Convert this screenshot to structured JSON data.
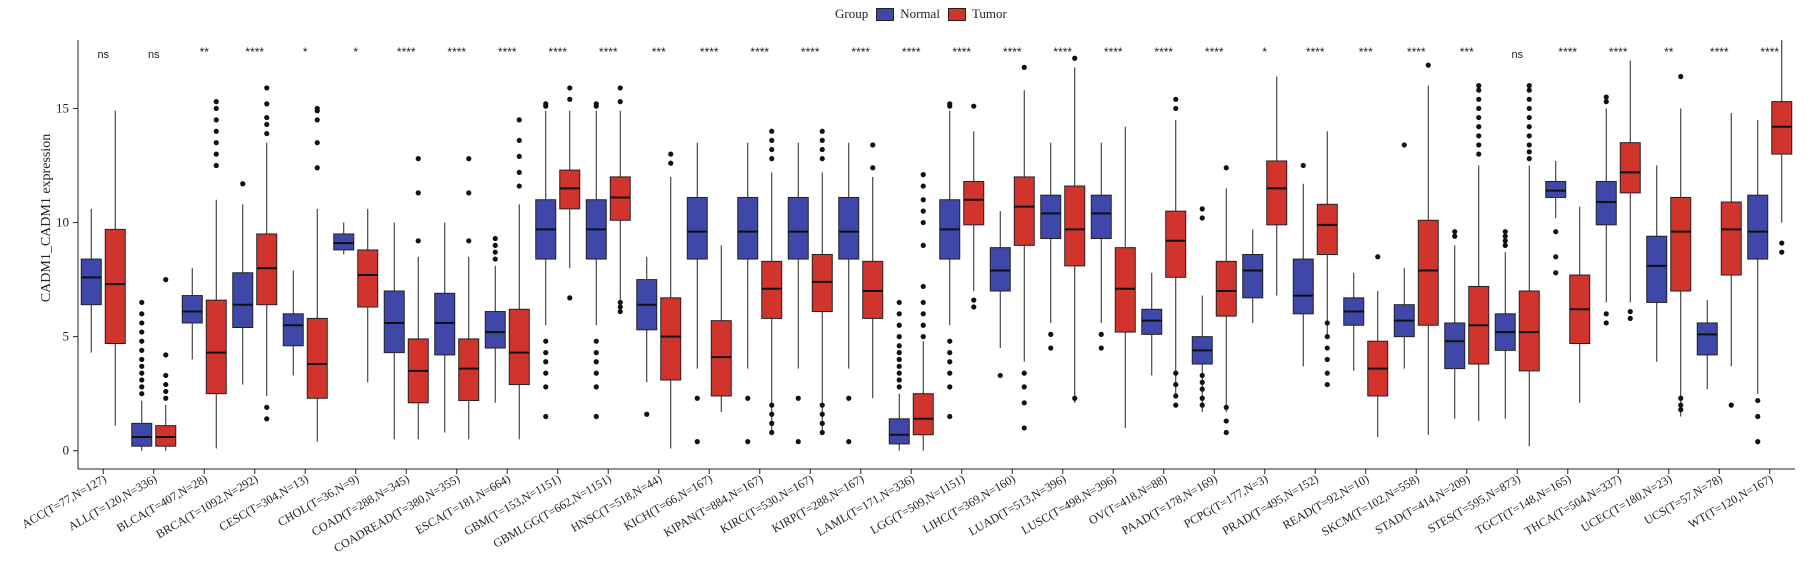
{
  "chart_data": {
    "type": "box",
    "title": "",
    "xlabel": "",
    "ylabel": "CADM1_CADM1 expression",
    "ylim": [
      -0.8,
      18
    ],
    "yticks": [
      0,
      5,
      10,
      15
    ],
    "grid": false,
    "legend": {
      "title": "Group",
      "placement": "top-center",
      "entries": [
        {
          "name": "Normal",
          "color": "#3f48a8"
        },
        {
          "name": "Tumor",
          "color": "#d0342c"
        }
      ]
    },
    "categories": [
      "ACC(T=77,N=127)",
      "ALL(T=120,N=336)",
      "BLCA(T=407,N=28)",
      "BRCA(T=1092,N=292)",
      "CESC(T=304,N=13)",
      "CHOL(T=36,N=9)",
      "COAD(T=288,N=345)",
      "COADREAD(T=380,N=355)",
      "ESCA(T=181,N=664)",
      "GBM(T=153,N=1151)",
      "GBMLGG(T=662,N=1151)",
      "HNSC(T=518,N=44)",
      "KICH(T=66,N=167)",
      "KIPAN(T=884,N=167)",
      "KIRC(T=530,N=167)",
      "KIRP(T=288,N=167)",
      "LAML(T=171,N=336)",
      "LGG(T=509,N=1151)",
      "LIHC(T=369,N=160)",
      "LUAD(T=513,N=396)",
      "LUSC(T=498,N=396)",
      "OV(T=418,N=88)",
      "PAAD(T=178,N=169)",
      "PCPG(T=177,N=3)",
      "PRAD(T=495,N=152)",
      "READ(T=92,N=10)",
      "SKCM(T=102,N=558)",
      "STAD(T=414,N=209)",
      "STES(T=595,N=873)",
      "TGCT(T=148,N=165)",
      "THCA(T=504,N=337)",
      "UCEC(T=180,N=23)",
      "UCS(T=57,N=78)",
      "WT(T=120,N=167)"
    ],
    "significance": [
      "ns",
      "ns",
      "**",
      "****",
      "*",
      "*",
      "****",
      "****",
      "****",
      "****",
      "****",
      "***",
      "****",
      "****",
      "****",
      "****",
      "****",
      "****",
      "****",
      "****",
      "****",
      "****",
      "****",
      "*",
      "****",
      "***",
      "****",
      "***",
      "ns",
      "****",
      "****",
      "**",
      "****",
      "****"
    ],
    "series": [
      {
        "name": "Normal",
        "color": "#3f48a8",
        "boxes": [
          {
            "min": 4.3,
            "q1": 6.4,
            "median": 7.6,
            "q3": 8.4,
            "max": 10.6,
            "outliers": []
          },
          {
            "min": 0.0,
            "q1": 0.2,
            "median": 0.6,
            "q3": 1.2,
            "max": 2.2,
            "outliers": [
              2.5,
              2.8,
              3.1,
              3.4,
              3.7,
              4.0,
              4.4,
              4.8,
              5.2,
              5.6,
              6.0,
              6.5
            ]
          },
          {
            "min": 4.0,
            "q1": 5.6,
            "median": 6.1,
            "q3": 6.8,
            "max": 8.0,
            "outliers": []
          },
          {
            "min": 2.9,
            "q1": 5.4,
            "median": 6.4,
            "q3": 7.8,
            "max": 10.8,
            "outliers": [
              11.7
            ]
          },
          {
            "min": 3.3,
            "q1": 4.6,
            "median": 5.5,
            "q3": 6.0,
            "max": 7.9,
            "outliers": []
          },
          {
            "min": 8.6,
            "q1": 8.8,
            "median": 9.1,
            "q3": 9.5,
            "max": 10.0,
            "outliers": []
          },
          {
            "min": 0.5,
            "q1": 4.3,
            "median": 5.6,
            "q3": 7.0,
            "max": 10.0,
            "outliers": []
          },
          {
            "min": 0.8,
            "q1": 4.2,
            "median": 5.6,
            "q3": 6.9,
            "max": 10.0,
            "outliers": []
          },
          {
            "min": 2.1,
            "q1": 4.5,
            "median": 5.2,
            "q3": 6.1,
            "max": 8.1,
            "outliers": [
              8.4,
              8.7,
              9.0,
              9.3
            ]
          },
          {
            "min": 5.5,
            "q1": 8.4,
            "median": 9.7,
            "q3": 11.0,
            "max": 14.9,
            "outliers": [
              1.5,
              2.8,
              3.4,
              3.9,
              4.3,
              4.8,
              15.1,
              15.2
            ]
          },
          {
            "min": 5.5,
            "q1": 8.4,
            "median": 9.7,
            "q3": 11.0,
            "max": 14.9,
            "outliers": [
              1.5,
              2.8,
              3.4,
              3.9,
              4.3,
              4.8,
              15.1,
              15.2
            ]
          },
          {
            "min": 3.0,
            "q1": 5.3,
            "median": 6.4,
            "q3": 7.5,
            "max": 8.5,
            "outliers": [
              1.6
            ]
          },
          {
            "min": 3.6,
            "q1": 8.4,
            "median": 9.6,
            "q3": 11.1,
            "max": 13.5,
            "outliers": [
              0.4,
              2.3
            ]
          },
          {
            "min": 3.6,
            "q1": 8.4,
            "median": 9.6,
            "q3": 11.1,
            "max": 13.5,
            "outliers": [
              0.4,
              2.3
            ]
          },
          {
            "min": 3.6,
            "q1": 8.4,
            "median": 9.6,
            "q3": 11.1,
            "max": 13.5,
            "outliers": [
              0.4,
              2.3
            ]
          },
          {
            "min": 3.6,
            "q1": 8.4,
            "median": 9.6,
            "q3": 11.1,
            "max": 13.5,
            "outliers": [
              0.4,
              2.3
            ]
          },
          {
            "min": 0.0,
            "q1": 0.3,
            "median": 0.7,
            "q3": 1.4,
            "max": 2.5,
            "outliers": [
              2.8,
              3.1,
              3.4,
              3.7,
              4.0,
              4.3,
              4.6,
              5.0,
              5.5,
              6.0,
              6.5
            ]
          },
          {
            "min": 5.5,
            "q1": 8.4,
            "median": 9.7,
            "q3": 11.0,
            "max": 14.9,
            "outliers": [
              1.5,
              2.8,
              3.4,
              3.9,
              4.3,
              4.8,
              15.1,
              15.2
            ]
          },
          {
            "min": 4.5,
            "q1": 7.0,
            "median": 7.9,
            "q3": 8.9,
            "max": 10.5,
            "outliers": [
              3.3
            ]
          },
          {
            "min": 5.6,
            "q1": 9.3,
            "median": 10.4,
            "q3": 11.2,
            "max": 13.5,
            "outliers": [
              4.5,
              5.1
            ]
          },
          {
            "min": 5.6,
            "q1": 9.3,
            "median": 10.4,
            "q3": 11.2,
            "max": 13.5,
            "outliers": [
              4.5,
              5.1
            ]
          },
          {
            "min": 3.3,
            "q1": 5.1,
            "median": 5.7,
            "q3": 6.2,
            "max": 7.8,
            "outliers": []
          },
          {
            "min": 1.7,
            "q1": 3.8,
            "median": 4.4,
            "q3": 5.0,
            "max": 6.8,
            "outliers": [
              2.0,
              2.3,
              2.7,
              3.0,
              3.3,
              10.2,
              10.6
            ]
          },
          {
            "min": 5.6,
            "q1": 6.7,
            "median": 7.9,
            "q3": 8.6,
            "max": 9.7,
            "outliers": []
          },
          {
            "min": 3.7,
            "q1": 6.0,
            "median": 6.8,
            "q3": 8.4,
            "max": 11.7,
            "outliers": [
              12.5
            ]
          },
          {
            "min": 3.5,
            "q1": 5.5,
            "median": 6.1,
            "q3": 6.7,
            "max": 7.8,
            "outliers": []
          },
          {
            "min": 3.6,
            "q1": 5.0,
            "median": 5.7,
            "q3": 6.4,
            "max": 8.0,
            "outliers": [
              13.4
            ]
          },
          {
            "min": 1.4,
            "q1": 3.6,
            "median": 4.8,
            "q3": 5.6,
            "max": 9.0,
            "outliers": [
              9.4,
              9.6
            ]
          },
          {
            "min": 1.4,
            "q1": 4.4,
            "median": 5.2,
            "q3": 6.0,
            "max": 8.7,
            "outliers": [
              9.0,
              9.2,
              9.4,
              9.6
            ]
          },
          {
            "min": 10.2,
            "q1": 11.1,
            "median": 11.4,
            "q3": 11.8,
            "max": 12.7,
            "outliers": [
              9.6,
              8.5,
              7.8
            ]
          },
          {
            "min": 6.5,
            "q1": 9.9,
            "median": 10.9,
            "q3": 11.8,
            "max": 15.0,
            "outliers": [
              5.6,
              6.0,
              15.3,
              15.5
            ]
          },
          {
            "min": 3.9,
            "q1": 6.5,
            "median": 8.1,
            "q3": 9.4,
            "max": 12.5,
            "outliers": []
          },
          {
            "min": 2.7,
            "q1": 4.2,
            "median": 5.1,
            "q3": 5.6,
            "max": 6.6,
            "outliers": []
          },
          {
            "min": 2.5,
            "q1": 8.4,
            "median": 9.6,
            "q3": 11.2,
            "max": 14.5,
            "outliers": [
              0.4,
              1.5,
              2.2
            ]
          }
        ]
      },
      {
        "name": "Tumor",
        "color": "#d0342c",
        "boxes": [
          {
            "min": 1.1,
            "q1": 4.7,
            "median": 7.3,
            "q3": 9.7,
            "max": 14.9,
            "outliers": []
          },
          {
            "min": 0.0,
            "q1": 0.2,
            "median": 0.6,
            "q3": 1.1,
            "max": 2.0,
            "outliers": [
              2.3,
              2.6,
              2.9,
              3.3,
              4.2,
              7.5
            ]
          },
          {
            "min": 0.1,
            "q1": 2.5,
            "median": 4.3,
            "q3": 6.6,
            "max": 11.0,
            "outliers": [
              12.5,
              13.0,
              13.5,
              14.0,
              14.5,
              15.0,
              15.3
            ]
          },
          {
            "min": 2.4,
            "q1": 6.4,
            "median": 8.0,
            "q3": 9.5,
            "max": 13.5,
            "outliers": [
              1.4,
              1.9,
              13.9,
              14.3,
              14.6,
              15.2,
              15.9
            ]
          },
          {
            "min": 0.4,
            "q1": 2.3,
            "median": 3.8,
            "q3": 5.8,
            "max": 10.6,
            "outliers": [
              12.4,
              13.5,
              14.5,
              14.9,
              15.0
            ]
          },
          {
            "min": 3.0,
            "q1": 6.3,
            "median": 7.7,
            "q3": 8.8,
            "max": 10.6,
            "outliers": []
          },
          {
            "min": 0.5,
            "q1": 2.1,
            "median": 3.5,
            "q3": 4.9,
            "max": 8.5,
            "outliers": [
              9.2,
              11.3,
              12.8
            ]
          },
          {
            "min": 0.5,
            "q1": 2.2,
            "median": 3.6,
            "q3": 4.9,
            "max": 8.5,
            "outliers": [
              9.2,
              11.3,
              12.8
            ]
          },
          {
            "min": 0.5,
            "q1": 2.9,
            "median": 4.3,
            "q3": 6.2,
            "max": 10.8,
            "outliers": [
              11.6,
              12.2,
              12.9,
              13.6,
              14.5
            ]
          },
          {
            "min": 8.0,
            "q1": 10.6,
            "median": 11.5,
            "q3": 12.3,
            "max": 14.9,
            "outliers": [
              6.7,
              15.4,
              15.9
            ]
          },
          {
            "min": 6.6,
            "q1": 10.1,
            "median": 11.1,
            "q3": 12.0,
            "max": 14.9,
            "outliers": [
              6.1,
              6.3,
              6.5,
              15.3,
              15.9
            ]
          },
          {
            "min": 0.1,
            "q1": 3.1,
            "median": 5.0,
            "q3": 6.7,
            "max": 12.0,
            "outliers": [
              12.6,
              13.0
            ]
          },
          {
            "min": 1.7,
            "q1": 2.4,
            "median": 4.1,
            "q3": 5.7,
            "max": 9.0,
            "outliers": []
          },
          {
            "min": 0.7,
            "q1": 5.8,
            "median": 7.1,
            "q3": 8.3,
            "max": 12.2,
            "outliers": [
              0.8,
              1.2,
              1.6,
              2.0,
              12.8,
              13.2,
              13.6,
              14.0
            ]
          },
          {
            "min": 0.7,
            "q1": 6.1,
            "median": 7.4,
            "q3": 8.6,
            "max": 12.2,
            "outliers": [
              0.8,
              1.2,
              1.6,
              2.0,
              12.8,
              13.2,
              13.6,
              14.0
            ]
          },
          {
            "min": 2.3,
            "q1": 5.8,
            "median": 7.0,
            "q3": 8.3,
            "max": 12.0,
            "outliers": [
              12.4,
              13.4
            ]
          },
          {
            "min": 0.0,
            "q1": 0.7,
            "median": 1.4,
            "q3": 2.5,
            "max": 4.8,
            "outliers": [
              5.0,
              5.5,
              6.0,
              6.5,
              7.2,
              9.0,
              10.0,
              10.5,
              11.0,
              11.6,
              12.1
            ]
          },
          {
            "min": 7.0,
            "q1": 9.9,
            "median": 11.0,
            "q3": 11.8,
            "max": 14.0,
            "outliers": [
              6.3,
              6.6,
              15.1
            ]
          },
          {
            "min": 3.9,
            "q1": 9.0,
            "median": 10.7,
            "q3": 12.0,
            "max": 15.8,
            "outliers": [
              1.0,
              2.1,
              2.8,
              3.4,
              16.8
            ]
          },
          {
            "min": 2.1,
            "q1": 8.1,
            "median": 9.7,
            "q3": 11.6,
            "max": 16.8,
            "outliers": [
              2.3,
              17.2
            ]
          },
          {
            "min": 1.0,
            "q1": 5.2,
            "median": 7.1,
            "q3": 8.9,
            "max": 14.2,
            "outliers": []
          },
          {
            "min": 2.5,
            "q1": 7.6,
            "median": 9.2,
            "q3": 10.5,
            "max": 14.5,
            "outliers": [
              2.0,
              2.4,
              2.9,
              3.4,
              15.0,
              15.4
            ]
          },
          {
            "min": 1.7,
            "q1": 5.9,
            "median": 7.0,
            "q3": 8.3,
            "max": 11.5,
            "outliers": [
              0.8,
              1.3,
              1.9,
              12.4
            ]
          },
          {
            "min": 6.8,
            "q1": 9.9,
            "median": 11.5,
            "q3": 12.7,
            "max": 16.4,
            "outliers": []
          },
          {
            "min": 5.0,
            "q1": 8.6,
            "median": 9.9,
            "q3": 10.8,
            "max": 14.0,
            "outliers": [
              2.9,
              3.4,
              4.0,
              4.5,
              5.0,
              5.6
            ]
          },
          {
            "min": 0.6,
            "q1": 2.4,
            "median": 3.6,
            "q3": 4.8,
            "max": 7.0,
            "outliers": [
              8.5
            ]
          },
          {
            "min": 0.7,
            "q1": 5.5,
            "median": 7.9,
            "q3": 10.1,
            "max": 16.0,
            "outliers": [
              16.9
            ]
          },
          {
            "min": 1.3,
            "q1": 3.8,
            "median": 5.5,
            "q3": 7.2,
            "max": 12.5,
            "outliers": [
              13.0,
              13.4,
              13.8,
              14.2,
              14.6,
              15.0,
              15.4,
              15.8,
              16.0
            ]
          },
          {
            "min": 0.2,
            "q1": 3.5,
            "median": 5.2,
            "q3": 7.0,
            "max": 12.5,
            "outliers": [
              12.8,
              13.1,
              13.4,
              13.8,
              14.2,
              14.6,
              15.0,
              15.4,
              15.8,
              16.0
            ]
          },
          {
            "min": 2.1,
            "q1": 4.7,
            "median": 6.2,
            "q3": 7.7,
            "max": 10.7,
            "outliers": []
          },
          {
            "min": 6.5,
            "q1": 11.3,
            "median": 12.2,
            "q3": 13.5,
            "max": 17.1,
            "outliers": [
              5.8,
              6.1
            ]
          },
          {
            "min": 1.5,
            "q1": 7.0,
            "median": 9.6,
            "q3": 11.1,
            "max": 15.0,
            "outliers": [
              1.8,
              2.0,
              2.3,
              16.4
            ]
          },
          {
            "min": 3.7,
            "q1": 7.7,
            "median": 9.7,
            "q3": 10.9,
            "max": 14.8,
            "outliers": [
              2.0
            ]
          },
          {
            "min": 10.0,
            "q1": 13.0,
            "median": 14.2,
            "q3": 15.3,
            "max": 18.0,
            "outliers": [
              8.7,
              9.1
            ]
          }
        ]
      }
    ]
  }
}
